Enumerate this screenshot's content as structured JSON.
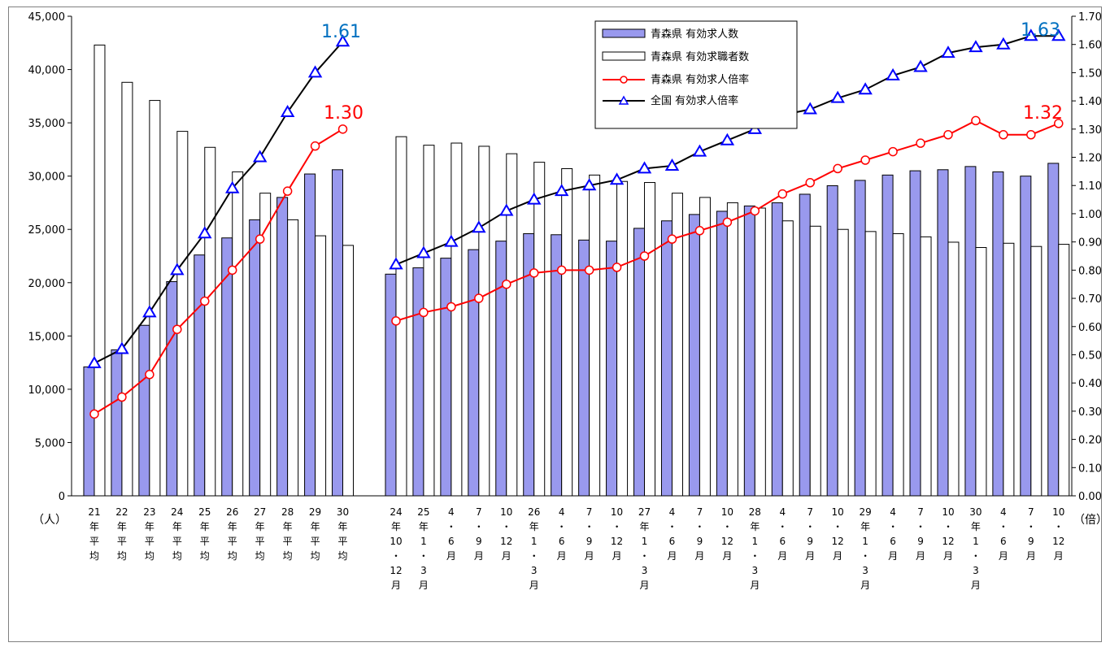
{
  "chart_data": {
    "type": "bar",
    "title": "",
    "left_axis": {
      "unit": "（人）",
      "ylim": [
        0,
        45000
      ],
      "ticks": [
        "0",
        "5,000",
        "10,000",
        "15,000",
        "20,000",
        "25,000",
        "30,000",
        "35,000",
        "40,000",
        "45,000"
      ]
    },
    "right_axis": {
      "unit": "（倍）",
      "ylim": [
        0,
        1.7
      ],
      "ticks": [
        "0.00",
        "0.10",
        "0.20",
        "0.30",
        "0.40",
        "0.50",
        "0.60",
        "0.70",
        "0.80",
        "0.90",
        "1.00",
        "1.10",
        "1.20",
        "1.30",
        "1.40",
        "1.50",
        "1.60",
        "1.70"
      ]
    },
    "grid": false,
    "legend_position": "top-center",
    "groups": [
      {
        "categories": [
          [
            "21",
            "年",
            "平",
            "均"
          ],
          [
            "22",
            "年",
            "平",
            "均"
          ],
          [
            "23",
            "年",
            "平",
            "均"
          ],
          [
            "24",
            "年",
            "平",
            "均"
          ],
          [
            "25",
            "年",
            "平",
            "均"
          ],
          [
            "26",
            "年",
            "平",
            "均"
          ],
          [
            "27",
            "年",
            "平",
            "均"
          ],
          [
            "28",
            "年",
            "平",
            "均"
          ],
          [
            "29",
            "年",
            "平",
            "均"
          ],
          [
            "30",
            "年",
            "平",
            "均"
          ]
        ],
        "openings": [
          12100,
          13700,
          16000,
          20100,
          22600,
          24200,
          25900,
          28000,
          30200,
          30600
        ],
        "applicants": [
          42300,
          38800,
          37100,
          34200,
          32700,
          30400,
          28400,
          25900,
          24400,
          23500
        ],
        "aomori_ratio": [
          0.29,
          0.35,
          0.43,
          0.59,
          0.69,
          0.8,
          0.91,
          1.08,
          1.24,
          1.3
        ],
        "national_ratio": [
          0.47,
          0.52,
          0.65,
          0.8,
          0.93,
          1.09,
          1.2,
          1.36,
          1.5,
          1.61
        ]
      },
      {
        "categories": [
          [
            "24",
            "年",
            "10",
            "・",
            "12",
            "月"
          ],
          [
            "25",
            "年",
            "1",
            "・",
            "3",
            "月"
          ],
          [
            "4",
            "・",
            "6",
            "月"
          ],
          [
            "7",
            "・",
            "9",
            "月"
          ],
          [
            "10",
            "・",
            "12",
            "月"
          ],
          [
            "26",
            "年",
            "1",
            "・",
            "3",
            "月"
          ],
          [
            "4",
            "・",
            "6",
            "月"
          ],
          [
            "7",
            "・",
            "9",
            "月"
          ],
          [
            "10",
            "・",
            "12",
            "月"
          ],
          [
            "27",
            "年",
            "1",
            "・",
            "3",
            "月"
          ],
          [
            "4",
            "・",
            "6",
            "月"
          ],
          [
            "7",
            "・",
            "9",
            "月"
          ],
          [
            "10",
            "・",
            "12",
            "月"
          ],
          [
            "28",
            "年",
            "1",
            "・",
            "3",
            "月"
          ],
          [
            "4",
            "・",
            "6",
            "月"
          ],
          [
            "7",
            "・",
            "9",
            "月"
          ],
          [
            "10",
            "・",
            "12",
            "月"
          ],
          [
            "29",
            "年",
            "1",
            "・",
            "3",
            "月"
          ],
          [
            "4",
            "・",
            "6",
            "月"
          ],
          [
            "7",
            "・",
            "9",
            "月"
          ],
          [
            "10",
            "・",
            "12",
            "月"
          ],
          [
            "30",
            "年",
            "1",
            "・",
            "3",
            "月"
          ],
          [
            "4",
            "・",
            "6",
            "月"
          ],
          [
            "7",
            "・",
            "9",
            "月"
          ],
          [
            "10",
            "・",
            "12",
            "月"
          ]
        ],
        "openings": [
          20800,
          21400,
          22300,
          23100,
          23900,
          24600,
          24500,
          24000,
          23900,
          25100,
          25800,
          26400,
          26700,
          27200,
          27500,
          28300,
          29100,
          29600,
          30100,
          30500,
          30600,
          30900,
          30400,
          30000,
          31200
        ],
        "applicants": [
          33700,
          32900,
          33100,
          32800,
          32100,
          31300,
          30700,
          30100,
          29500,
          29400,
          28400,
          28000,
          27500,
          27000,
          25800,
          25300,
          25000,
          24800,
          24600,
          24300,
          23800,
          23300,
          23700,
          23400,
          23600
        ],
        "aomori_ratio": [
          0.62,
          0.65,
          0.67,
          0.7,
          0.75,
          0.79,
          0.8,
          0.8,
          0.81,
          0.85,
          0.91,
          0.94,
          0.97,
          1.01,
          1.07,
          1.11,
          1.16,
          1.19,
          1.22,
          1.25,
          1.28,
          1.33,
          1.28,
          1.28,
          1.32
        ],
        "national_ratio": [
          0.82,
          0.86,
          0.9,
          0.95,
          1.01,
          1.05,
          1.08,
          1.1,
          1.12,
          1.16,
          1.17,
          1.22,
          1.26,
          1.3,
          1.35,
          1.37,
          1.41,
          1.44,
          1.49,
          1.52,
          1.57,
          1.59,
          1.6,
          1.63,
          1.63
        ]
      }
    ],
    "series": [
      {
        "name": "青森県 有効求人数",
        "type": "bar",
        "key": "openings",
        "color": "#9999ee"
      },
      {
        "name": "青森県 有効求職者数",
        "type": "bar",
        "key": "applicants",
        "color": "#ffffff"
      },
      {
        "name": "青森県 有効求人倍率",
        "type": "line",
        "key": "aomori_ratio",
        "color": "#ff0000",
        "marker": "circle"
      },
      {
        "name": "全国 有効求人倍率",
        "type": "line",
        "key": "national_ratio",
        "color": "#000000",
        "marker": "triangle",
        "marker_color": "#0000ff"
      }
    ],
    "annotations": [
      {
        "text": "1.61",
        "color": "#0070c0"
      },
      {
        "text": "1.30",
        "color": "#ff0000"
      },
      {
        "text": "1.63",
        "color": "#0070c0"
      },
      {
        "text": "1.32",
        "color": "#ff0000"
      }
    ]
  }
}
